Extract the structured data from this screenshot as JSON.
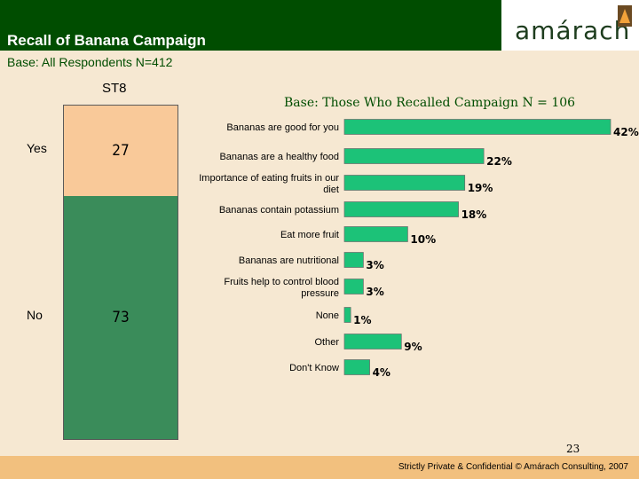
{
  "header": {
    "title": "Recall of Banana Campaign",
    "base_all": "Base: All Respondents N=412",
    "logo_text": "amárach",
    "logo_icon": "amarach-logo-icon"
  },
  "stack": {
    "label": "ST8",
    "segments": [
      {
        "label": "Yes",
        "value": 27,
        "color": "#f9c999"
      },
      {
        "label": "No",
        "value": 73,
        "color": "#3a8c5a"
      }
    ]
  },
  "chart_data": {
    "type": "bar",
    "orientation": "horizontal",
    "title": "Base: Those Who Recalled Campaign N = 106",
    "categories": [
      "Bananas are good for you",
      "Bananas are a healthy food",
      "Importance of eating fruits in our diet",
      "Bananas contain potassium",
      "Eat more fruit",
      "Bananas are nutritional",
      "Fruits help to control blood pressure",
      "None",
      "Other",
      "Don't Know"
    ],
    "values": [
      42,
      22,
      19,
      18,
      10,
      3,
      3,
      1,
      9,
      4
    ],
    "value_suffix": "%",
    "bar_color": "#1cc278",
    "grid": false,
    "legend": "none"
  },
  "footer": {
    "page_number": "23",
    "confidential": "Strictly Private & Confidential © Amárach Consulting, 2007"
  }
}
